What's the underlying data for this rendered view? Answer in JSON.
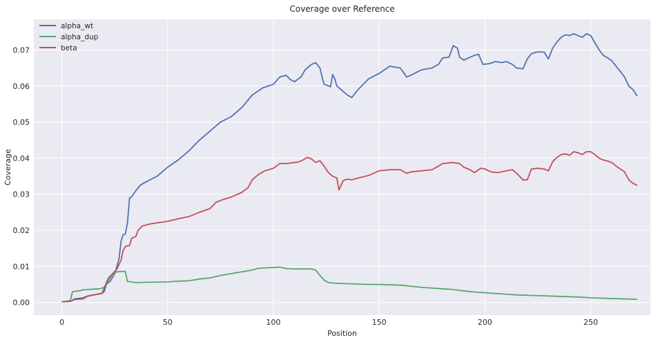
{
  "chart_data": {
    "type": "line",
    "title": "Coverage over Reference",
    "xlabel": "Position",
    "ylabel": "Coverage",
    "xlim": [
      -13.25,
      278.25
    ],
    "ylim": [
      -0.0035,
      0.0785
    ],
    "xticks": [
      0,
      50,
      100,
      150,
      200,
      250
    ],
    "yticks": [
      0.0,
      0.01,
      0.02,
      0.03,
      0.04,
      0.05,
      0.06,
      0.07
    ],
    "ytick_labels": [
      "0.00",
      "0.01",
      "0.02",
      "0.03",
      "0.04",
      "0.05",
      "0.06",
      "0.07"
    ],
    "grid": true,
    "legend_position": "top-left",
    "background": "#EAEAF2",
    "series": [
      {
        "name": "alpha_wt",
        "color": "#4C72B0",
        "points": [
          [
            0,
            0.0002
          ],
          [
            4,
            0.0003
          ],
          [
            6,
            0.001
          ],
          [
            10,
            0.0013
          ],
          [
            12,
            0.0018
          ],
          [
            16,
            0.0022
          ],
          [
            19,
            0.0025
          ],
          [
            20,
            0.003
          ],
          [
            21,
            0.005
          ],
          [
            23,
            0.006
          ],
          [
            25,
            0.008
          ],
          [
            27,
            0.012
          ],
          [
            28,
            0.017
          ],
          [
            29,
            0.0188
          ],
          [
            30,
            0.019
          ],
          [
            31,
            0.022
          ],
          [
            32,
            0.029
          ],
          [
            33,
            0.0293
          ],
          [
            35,
            0.031
          ],
          [
            37,
            0.0325
          ],
          [
            40,
            0.0335
          ],
          [
            45,
            0.035
          ],
          [
            50,
            0.0375
          ],
          [
            55,
            0.0395
          ],
          [
            60,
            0.042
          ],
          [
            65,
            0.045
          ],
          [
            70,
            0.0475
          ],
          [
            75,
            0.05
          ],
          [
            80,
            0.0515
          ],
          [
            85,
            0.054
          ],
          [
            90,
            0.0575
          ],
          [
            95,
            0.0595
          ],
          [
            100,
            0.0605
          ],
          [
            103,
            0.0625
          ],
          [
            106,
            0.063
          ],
          [
            108,
            0.0618
          ],
          [
            110,
            0.0612
          ],
          [
            113,
            0.0625
          ],
          [
            115,
            0.0645
          ],
          [
            118,
            0.066
          ],
          [
            120,
            0.0665
          ],
          [
            122,
            0.065
          ],
          [
            123,
            0.0625
          ],
          [
            124,
            0.0605
          ],
          [
            127,
            0.0598
          ],
          [
            128,
            0.0632
          ],
          [
            129,
            0.062
          ],
          [
            130,
            0.06
          ],
          [
            133,
            0.0585
          ],
          [
            135,
            0.0575
          ],
          [
            137,
            0.0568
          ],
          [
            140,
            0.059
          ],
          [
            145,
            0.062
          ],
          [
            150,
            0.0635
          ],
          [
            155,
            0.0655
          ],
          [
            160,
            0.065
          ],
          [
            163,
            0.0625
          ],
          [
            165,
            0.063
          ],
          [
            170,
            0.0645
          ],
          [
            175,
            0.065
          ],
          [
            178,
            0.066
          ],
          [
            180,
            0.0678
          ],
          [
            183,
            0.068
          ],
          [
            185,
            0.0712
          ],
          [
            187,
            0.0705
          ],
          [
            188,
            0.068
          ],
          [
            190,
            0.0672
          ],
          [
            193,
            0.068
          ],
          [
            195,
            0.0685
          ],
          [
            197,
            0.0688
          ],
          [
            199,
            0.066
          ],
          [
            202,
            0.0662
          ],
          [
            205,
            0.0668
          ],
          [
            208,
            0.0665
          ],
          [
            210,
            0.0668
          ],
          [
            213,
            0.066
          ],
          [
            215,
            0.065
          ],
          [
            218,
            0.0648
          ],
          [
            220,
            0.0675
          ],
          [
            222,
            0.069
          ],
          [
            225,
            0.0695
          ],
          [
            228,
            0.0694
          ],
          [
            230,
            0.0675
          ],
          [
            232,
            0.0705
          ],
          [
            234,
            0.0722
          ],
          [
            236,
            0.0735
          ],
          [
            238,
            0.0742
          ],
          [
            240,
            0.074
          ],
          [
            242,
            0.0745
          ],
          [
            244,
            0.074
          ],
          [
            246,
            0.0735
          ],
          [
            248,
            0.0745
          ],
          [
            250,
            0.074
          ],
          [
            252,
            0.072
          ],
          [
            254,
            0.07
          ],
          [
            256,
            0.0685
          ],
          [
            258,
            0.0678
          ],
          [
            260,
            0.067
          ],
          [
            262,
            0.0655
          ],
          [
            264,
            0.064
          ],
          [
            266,
            0.0625
          ],
          [
            268,
            0.06
          ],
          [
            270,
            0.059
          ],
          [
            272,
            0.0572
          ]
        ]
      },
      {
        "name": "alpha_dup",
        "color": "#55A868",
        "points": [
          [
            0,
            0.0002
          ],
          [
            4,
            0.0005
          ],
          [
            5,
            0.003
          ],
          [
            8,
            0.0032
          ],
          [
            10,
            0.0035
          ],
          [
            15,
            0.0037
          ],
          [
            18,
            0.0038
          ],
          [
            20,
            0.0042
          ],
          [
            22,
            0.006
          ],
          [
            24,
            0.0078
          ],
          [
            26,
            0.0085
          ],
          [
            28,
            0.0086
          ],
          [
            30,
            0.0086
          ],
          [
            31,
            0.0058
          ],
          [
            33,
            0.0057
          ],
          [
            35,
            0.0055
          ],
          [
            40,
            0.0056
          ],
          [
            50,
            0.0057
          ],
          [
            55,
            0.0059
          ],
          [
            60,
            0.006
          ],
          [
            65,
            0.0065
          ],
          [
            70,
            0.0068
          ],
          [
            73,
            0.0072
          ],
          [
            75,
            0.0075
          ],
          [
            80,
            0.008
          ],
          [
            85,
            0.0085
          ],
          [
            90,
            0.009
          ],
          [
            93,
            0.0095
          ],
          [
            96,
            0.0096
          ],
          [
            100,
            0.0097
          ],
          [
            103,
            0.0098
          ],
          [
            106,
            0.0094
          ],
          [
            110,
            0.0093
          ],
          [
            115,
            0.0093
          ],
          [
            118,
            0.0093
          ],
          [
            120,
            0.009
          ],
          [
            122,
            0.0075
          ],
          [
            124,
            0.0062
          ],
          [
            126,
            0.0055
          ],
          [
            130,
            0.0053
          ],
          [
            135,
            0.0052
          ],
          [
            140,
            0.0051
          ],
          [
            145,
            0.005
          ],
          [
            150,
            0.005
          ],
          [
            155,
            0.0049
          ],
          [
            160,
            0.0048
          ],
          [
            165,
            0.0045
          ],
          [
            170,
            0.0042
          ],
          [
            175,
            0.004
          ],
          [
            180,
            0.0038
          ],
          [
            185,
            0.0036
          ],
          [
            190,
            0.0032
          ],
          [
            195,
            0.0029
          ],
          [
            200,
            0.0027
          ],
          [
            205,
            0.0025
          ],
          [
            210,
            0.0023
          ],
          [
            215,
            0.0021
          ],
          [
            220,
            0.002
          ],
          [
            225,
            0.0019
          ],
          [
            230,
            0.0018
          ],
          [
            235,
            0.0017
          ],
          [
            240,
            0.0016
          ],
          [
            245,
            0.0015
          ],
          [
            250,
            0.0013
          ],
          [
            255,
            0.0012
          ],
          [
            260,
            0.0011
          ],
          [
            265,
            0.001
          ],
          [
            272,
            0.0009
          ]
        ]
      },
      {
        "name": "beta",
        "color": "#C44E52",
        "points": [
          [
            0,
            0.0002
          ],
          [
            4,
            0.0003
          ],
          [
            6,
            0.0008
          ],
          [
            10,
            0.001
          ],
          [
            12,
            0.0017
          ],
          [
            16,
            0.0022
          ],
          [
            19,
            0.0026
          ],
          [
            20,
            0.004
          ],
          [
            22,
            0.0068
          ],
          [
            24,
            0.008
          ],
          [
            26,
            0.0092
          ],
          [
            28,
            0.0118
          ],
          [
            29,
            0.0145
          ],
          [
            30,
            0.0155
          ],
          [
            32,
            0.0158
          ],
          [
            33,
            0.0178
          ],
          [
            35,
            0.0183
          ],
          [
            36,
            0.02
          ],
          [
            38,
            0.0212
          ],
          [
            42,
            0.0218
          ],
          [
            50,
            0.0225
          ],
          [
            55,
            0.0232
          ],
          [
            60,
            0.0238
          ],
          [
            65,
            0.025
          ],
          [
            70,
            0.026
          ],
          [
            73,
            0.0278
          ],
          [
            76,
            0.0285
          ],
          [
            80,
            0.0292
          ],
          [
            85,
            0.0305
          ],
          [
            88,
            0.0318
          ],
          [
            90,
            0.034
          ],
          [
            93,
            0.0355
          ],
          [
            96,
            0.0365
          ],
          [
            100,
            0.0372
          ],
          [
            103,
            0.0385
          ],
          [
            106,
            0.0385
          ],
          [
            110,
            0.0388
          ],
          [
            112,
            0.039
          ],
          [
            114,
            0.0395
          ],
          [
            116,
            0.0402
          ],
          [
            118,
            0.0398
          ],
          [
            120,
            0.0388
          ],
          [
            122,
            0.0393
          ],
          [
            124,
            0.0378
          ],
          [
            126,
            0.036
          ],
          [
            128,
            0.035
          ],
          [
            130,
            0.0345
          ],
          [
            131,
            0.0312
          ],
          [
            133,
            0.0338
          ],
          [
            135,
            0.0342
          ],
          [
            137,
            0.034
          ],
          [
            140,
            0.0345
          ],
          [
            145,
            0.0352
          ],
          [
            150,
            0.0365
          ],
          [
            155,
            0.0368
          ],
          [
            160,
            0.0368
          ],
          [
            163,
            0.0358
          ],
          [
            165,
            0.0362
          ],
          [
            170,
            0.0365
          ],
          [
            175,
            0.0368
          ],
          [
            178,
            0.0378
          ],
          [
            180,
            0.0385
          ],
          [
            185,
            0.0388
          ],
          [
            188,
            0.0385
          ],
          [
            190,
            0.0375
          ],
          [
            193,
            0.0368
          ],
          [
            195,
            0.036
          ],
          [
            198,
            0.0372
          ],
          [
            200,
            0.037
          ],
          [
            203,
            0.0362
          ],
          [
            206,
            0.036
          ],
          [
            210,
            0.0365
          ],
          [
            213,
            0.0368
          ],
          [
            215,
            0.0358
          ],
          [
            218,
            0.034
          ],
          [
            220,
            0.034
          ],
          [
            222,
            0.037
          ],
          [
            225,
            0.0372
          ],
          [
            228,
            0.037
          ],
          [
            230,
            0.0365
          ],
          [
            232,
            0.039
          ],
          [
            234,
            0.0402
          ],
          [
            236,
            0.041
          ],
          [
            238,
            0.0412
          ],
          [
            240,
            0.0408
          ],
          [
            242,
            0.0418
          ],
          [
            244,
            0.0415
          ],
          [
            246,
            0.041
          ],
          [
            248,
            0.0418
          ],
          [
            250,
            0.0418
          ],
          [
            252,
            0.041
          ],
          [
            254,
            0.04
          ],
          [
            256,
            0.0395
          ],
          [
            258,
            0.0392
          ],
          [
            260,
            0.0388
          ],
          [
            262,
            0.0378
          ],
          [
            264,
            0.037
          ],
          [
            266,
            0.0362
          ],
          [
            268,
            0.034
          ],
          [
            270,
            0.033
          ],
          [
            272,
            0.0325
          ]
        ]
      }
    ]
  }
}
